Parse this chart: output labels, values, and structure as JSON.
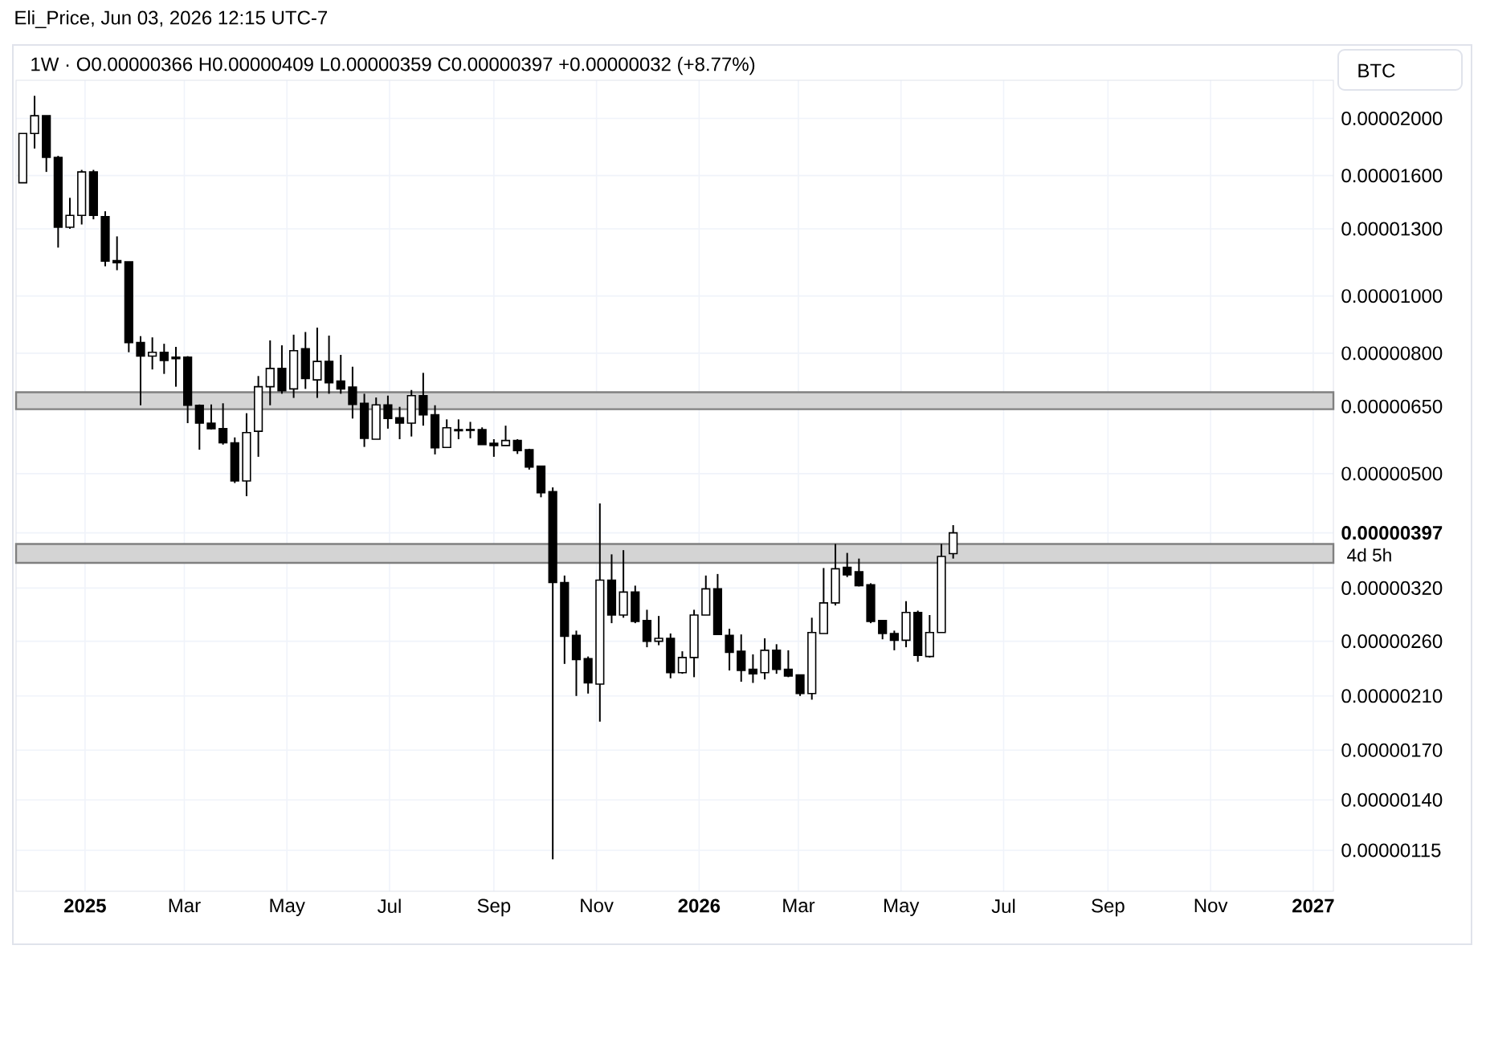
{
  "chart_data": {
    "type": "candlestick",
    "title": "1W · O0.00000366 H0.00000409 L0.00000359 C0.00000397 +0.00000032 (+8.77%)",
    "ylabel": "BTC",
    "annotations": [
      "Eli_Price, Jun 03, 2026 12:15 UTC-7",
      "4d 5h"
    ],
    "x": [
      "2024-11-25",
      "2024-12-02",
      "2024-12-09",
      "2024-12-16",
      "2024-12-23",
      "2024-12-30",
      "2025-01-06",
      "2025-01-13",
      "2025-01-20",
      "2025-01-27",
      "2025-02-03",
      "2025-02-10",
      "2025-02-17",
      "2025-02-24",
      "2025-03-03",
      "2025-03-10",
      "2025-03-17",
      "2025-03-24",
      "2025-03-31",
      "2025-04-07",
      "2025-04-14",
      "2025-04-21",
      "2025-04-28",
      "2025-05-05",
      "2025-05-12",
      "2025-05-19",
      "2025-05-26",
      "2025-06-02",
      "2025-06-09",
      "2025-06-16",
      "2025-06-23",
      "2025-06-30",
      "2025-07-07",
      "2025-07-14",
      "2025-07-21",
      "2025-07-28",
      "2025-08-04",
      "2025-08-11",
      "2025-08-18",
      "2025-08-25",
      "2025-09-01",
      "2025-09-08",
      "2025-09-15",
      "2025-09-22",
      "2025-09-29",
      "2025-10-06",
      "2025-10-13",
      "2025-10-20",
      "2025-10-27",
      "2025-11-03",
      "2025-11-10",
      "2025-11-17",
      "2025-11-24",
      "2025-12-01",
      "2025-12-08",
      "2025-12-15",
      "2025-12-22",
      "2025-12-29",
      "2026-01-05",
      "2026-01-12",
      "2026-01-19",
      "2026-01-26",
      "2026-02-02",
      "2026-02-09",
      "2026-02-16",
      "2026-02-23",
      "2026-03-02",
      "2026-03-09",
      "2026-03-16",
      "2026-03-23",
      "2026-03-30",
      "2026-04-06",
      "2026-04-13",
      "2026-04-20",
      "2026-04-27",
      "2026-05-04",
      "2026-05-11",
      "2026-05-18",
      "2026-05-25",
      "2026-06-01"
    ],
    "ohlc": [
      [
        1.556e-05,
        1.886e-05,
        1.556e-05,
        1.886e-05
      ],
      [
        1.886e-05,
        2.184e-05,
        1.778e-05,
        2.021e-05
      ],
      [
        2.021e-05,
        2.021e-05,
        1.623e-05,
        1.718e-05
      ],
      [
        1.718e-05,
        1.728e-05,
        1.208e-05,
        1.308e-05
      ],
      [
        1.308e-05,
        1.467e-05,
        1.3e-05,
        1.37e-05
      ],
      [
        1.37e-05,
        1.636e-05,
        1.322e-05,
        1.623e-05
      ],
      [
        1.623e-05,
        1.636e-05,
        1.349e-05,
        1.37e-05
      ],
      [
        1.363e-05,
        1.392e-05,
        1.123e-05,
        1.146e-05
      ],
      [
        1.148e-05,
        1.262e-05,
        1.106e-05,
        1.139e-05
      ],
      [
        1.143e-05,
        1.143e-05,
        8.03e-06,
        8.34e-06
      ],
      [
        8.34e-06,
        8.55e-06,
        6.53e-06,
        7.91e-06
      ],
      [
        7.91e-06,
        8.51e-06,
        7.51e-06,
        8.03e-06
      ],
      [
        8.03e-06,
        8.3e-06,
        7.38e-06,
        7.78e-06
      ],
      [
        7.88e-06,
        8.2e-06,
        7.02e-06,
        7.83e-06
      ],
      [
        7.88e-06,
        7.91e-06,
        6.09e-06,
        6.53e-06
      ],
      [
        6.53e-06,
        6.55e-06,
        5.49e-06,
        6.09e-06
      ],
      [
        6.09e-06,
        6.55e-06,
        5.94e-06,
        5.96e-06
      ],
      [
        5.96e-06,
        6.58e-06,
        5.6e-06,
        5.64e-06
      ],
      [
        5.64e-06,
        5.76e-06,
        4.82e-06,
        4.86e-06
      ],
      [
        4.86e-06,
        6.33e-06,
        4.58e-06,
        5.87e-06
      ],
      [
        5.9e-06,
        7.32e-06,
        5.34e-06,
        7.02e-06
      ],
      [
        7.02e-06,
        8.41e-06,
        6.53e-06,
        7.54e-06
      ],
      [
        7.54e-06,
        8.25e-06,
        6.83e-06,
        6.91e-06
      ],
      [
        6.96e-06,
        8.6e-06,
        6.72e-06,
        8.08e-06
      ],
      [
        8.14e-06,
        8.69e-06,
        6.96e-06,
        7.25e-06
      ],
      [
        7.21e-06,
        8.84e-06,
        6.72e-06,
        7.75e-06
      ],
      [
        7.75e-06,
        8.57e-06,
        6.83e-06,
        7.13e-06
      ],
      [
        7.18e-06,
        7.95e-06,
        6.83e-06,
        6.96e-06
      ],
      [
        7.01e-06,
        7.59e-06,
        6.2e-06,
        6.55e-06
      ],
      [
        6.58e-06,
        6.83e-06,
        5.55e-06,
        5.74e-06
      ],
      [
        5.72e-06,
        6.73e-06,
        5.72e-06,
        6.54e-06
      ],
      [
        6.54e-06,
        6.78e-06,
        5.96e-06,
        6.2e-06
      ],
      [
        6.22e-06,
        6.49e-06,
        5.72e-06,
        6.09e-06
      ],
      [
        6.09e-06,
        6.93e-06,
        5.78e-06,
        6.78e-06
      ],
      [
        6.78e-06,
        7.41e-06,
        6.03e-06,
        6.29e-06
      ],
      [
        6.29e-06,
        6.53e-06,
        5.39e-06,
        5.53e-06
      ],
      [
        5.54e-06,
        6.18e-06,
        5.54e-06,
        5.98e-06
      ],
      [
        5.91e-06,
        6.18e-06,
        5.72e-06,
        5.94e-06
      ],
      [
        5.94e-06,
        6.12e-06,
        5.74e-06,
        5.92e-06
      ],
      [
        5.94e-06,
        5.99e-06,
        5.6e-06,
        5.6e-06
      ],
      [
        5.63e-06,
        5.72e-06,
        5.34e-06,
        5.58e-06
      ],
      [
        5.58e-06,
        6.03e-06,
        5.58e-06,
        5.69e-06
      ],
      [
        5.69e-06,
        5.72e-06,
        5.4e-06,
        5.47e-06
      ],
      [
        5.49e-06,
        5.51e-06,
        5.08e-06,
        5.13e-06
      ],
      [
        5.15e-06,
        5.15e-06,
        4.56e-06,
        4.64e-06
      ],
      [
        4.66e-06,
        4.74e-06,
        1.11e-06,
        3.27e-06
      ],
      [
        3.27e-06,
        3.36e-06,
        2.38e-06,
        2.65e-06
      ],
      [
        2.66e-06,
        2.71e-06,
        2.1e-06,
        2.42e-06
      ],
      [
        2.43e-06,
        2.45e-06,
        2.12e-06,
        2.21e-06
      ],
      [
        2.2e-06,
        4.45e-06,
        1.9e-06,
        3.3e-06
      ],
      [
        3.3e-06,
        3.65e-06,
        2.79e-06,
        2.88e-06
      ],
      [
        2.88e-06,
        3.71e-06,
        2.85e-06,
        3.15e-06
      ],
      [
        3.15e-06,
        3.23e-06,
        2.79e-06,
        2.81e-06
      ],
      [
        2.82e-06,
        2.94e-06,
        2.54e-06,
        2.6e-06
      ],
      [
        2.6e-06,
        2.87e-06,
        2.56e-06,
        2.63e-06
      ],
      [
        2.63e-06,
        2.68e-06,
        2.25e-06,
        2.3e-06
      ],
      [
        2.3e-06,
        2.5e-06,
        2.29e-06,
        2.44e-06
      ],
      [
        2.44e-06,
        2.94e-06,
        2.26e-06,
        2.88e-06
      ],
      [
        2.88e-06,
        3.36e-06,
        2.88e-06,
        3.19e-06
      ],
      [
        3.19e-06,
        3.38e-06,
        2.67e-06,
        2.67e-06
      ],
      [
        2.66e-06,
        2.73e-06,
        2.32e-06,
        2.49e-06
      ],
      [
        2.5e-06,
        2.67e-06,
        2.22e-06,
        2.32e-06
      ],
      [
        2.33e-06,
        2.47e-06,
        2.21e-06,
        2.29e-06
      ],
      [
        2.3e-06,
        2.63e-06,
        2.24e-06,
        2.51e-06
      ],
      [
        2.51e-06,
        2.57e-06,
        2.29e-06,
        2.33e-06
      ],
      [
        2.33e-06,
        2.51e-06,
        2.26e-06,
        2.27e-06
      ],
      [
        2.28e-06,
        2.28e-06,
        2.1e-06,
        2.12e-06
      ],
      [
        2.12e-06,
        2.85e-06,
        2.07e-06,
        2.69e-06
      ],
      [
        2.68e-06,
        3.46e-06,
        2.68e-06,
        3.02e-06
      ],
      [
        3.02e-06,
        3.8e-06,
        2.99e-06,
        3.45e-06
      ],
      [
        3.47e-06,
        3.67e-06,
        3.34e-06,
        3.37e-06
      ],
      [
        3.41e-06,
        3.59e-06,
        3.22e-06,
        3.23e-06
      ],
      [
        3.24e-06,
        3.26e-06,
        2.79e-06,
        2.81e-06
      ],
      [
        2.82e-06,
        2.82e-06,
        2.62e-06,
        2.68e-06
      ],
      [
        2.68e-06,
        2.71e-06,
        2.51e-06,
        2.61e-06
      ],
      [
        2.61e-06,
        3.04e-06,
        2.54e-06,
        2.91e-06
      ],
      [
        2.91e-06,
        2.93e-06,
        2.4e-06,
        2.46e-06
      ],
      [
        2.45e-06,
        2.88e-06,
        2.44e-06,
        2.69e-06
      ],
      [
        2.69e-06,
        3.8e-06,
        2.69e-06,
        3.62e-06
      ],
      [
        3.66e-06,
        4.09e-06,
        3.59e-06,
        3.97e-06
      ]
    ],
    "log": true,
    "xlim": [
      "2024-11-21",
      "2027-01-13"
    ],
    "xticks": [
      {
        "value": "2025-01-01",
        "label": "2025"
      },
      {
        "value": "2025-03-01",
        "label": "Mar"
      },
      {
        "value": "2025-05-01",
        "label": "May"
      },
      {
        "value": "2025-07-01",
        "label": "Jul"
      },
      {
        "value": "2025-09-01",
        "label": "Sep"
      },
      {
        "value": "2025-11-01",
        "label": "Nov"
      },
      {
        "value": "2026-01-01",
        "label": "2026"
      },
      {
        "value": "2026-03-01",
        "label": "Mar"
      },
      {
        "value": "2026-05-01",
        "label": "May"
      },
      {
        "value": "2026-07-01",
        "label": "Jul"
      },
      {
        "value": "2026-09-01",
        "label": "Sep"
      },
      {
        "value": "2026-11-01",
        "label": "Nov"
      },
      {
        "value": "2027-01-01",
        "label": "2027"
      }
    ],
    "ylim": [
      9.8e-07,
      2.32e-05
    ],
    "yticks": [
      {
        "value": 1.15e-06,
        "label": "0.00000115"
      },
      {
        "value": 1.4e-06,
        "label": "0.00000140"
      },
      {
        "value": 1.7e-06,
        "label": "0.00000170"
      },
      {
        "value": 2.1e-06,
        "label": "0.00000210"
      },
      {
        "value": 2.6e-06,
        "label": "0.00000260"
      },
      {
        "value": 3.2e-06,
        "label": "0.00000320"
      },
      {
        "value": 3.97e-06,
        "label": "0.00000397"
      },
      {
        "value": 5e-06,
        "label": "0.00000500"
      },
      {
        "value": 6.5e-06,
        "label": "0.00000650"
      },
      {
        "value": 8e-06,
        "label": "0.00000800"
      },
      {
        "value": 1e-05,
        "label": "0.00001000"
      },
      {
        "value": 1.3e-05,
        "label": "0.00001300"
      },
      {
        "value": 1.6e-05,
        "label": "0.00001600"
      },
      {
        "value": 2e-05,
        "label": "0.00002000"
      }
    ],
    "bands": [
      {
        "axis": "y",
        "from": 6.43e-06,
        "to": 6.87e-06,
        "color": "#d4d4d4"
      },
      {
        "axis": "y",
        "from": 3.53e-06,
        "to": 3.8e-06,
        "color": "#d4d4d4"
      }
    ],
    "grid": true
  }
}
